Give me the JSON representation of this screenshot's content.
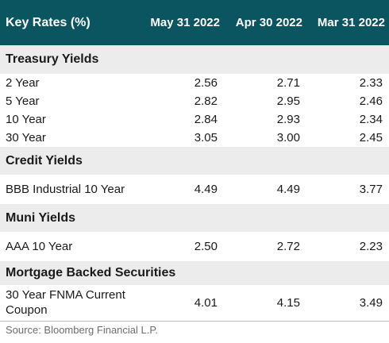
{
  "header": {
    "title": "Key Rates (%)",
    "columns": [
      "May 31 2022",
      "Apr 30 2022",
      "Mar 31 2022"
    ]
  },
  "sections": [
    {
      "title": "Treasury Yields",
      "rows": [
        {
          "label": "2 Year",
          "values": [
            "2.56",
            "2.71",
            "2.33"
          ]
        },
        {
          "label": "5 Year",
          "values": [
            "2.82",
            "2.95",
            "2.46"
          ]
        },
        {
          "label": "10 Year",
          "values": [
            "2.84",
            "2.93",
            "2.34"
          ]
        },
        {
          "label": "30 Year",
          "values": [
            "3.05",
            "3.00",
            "2.45"
          ]
        }
      ]
    },
    {
      "title": "Credit Yields",
      "rows": [
        {
          "label": "BBB Industrial 10 Year",
          "values": [
            "4.49",
            "4.49",
            "3.77"
          ]
        }
      ]
    },
    {
      "title": "Muni Yields",
      "rows": [
        {
          "label": "AAA 10 Year",
          "values": [
            "2.50",
            "2.72",
            "2.23"
          ]
        }
      ]
    },
    {
      "title": "Mortgage Backed Securities",
      "rows": [
        {
          "label": "30 Year FNMA Current Coupon",
          "values": [
            "4.01",
            "4.15",
            "3.49"
          ]
        }
      ]
    }
  ],
  "source": "Source: Bloomberg Financial L.P."
}
